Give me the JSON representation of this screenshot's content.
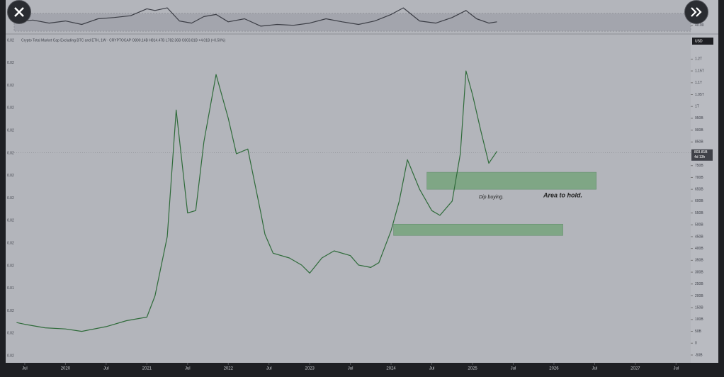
{
  "chart_data": [
    {
      "type": "line",
      "color": "#3b3d45",
      "x": [
        2019.4,
        2019.6,
        2019.8,
        2020.0,
        2020.2,
        2020.4,
        2020.6,
        2020.8,
        2021.0,
        2021.1,
        2021.25,
        2021.4,
        2021.55,
        2021.7,
        2021.85,
        2022.0,
        2022.2,
        2022.4,
        2022.6,
        2022.8,
        2023.0,
        2023.2,
        2023.4,
        2023.6,
        2023.8,
        2024.0,
        2024.15,
        2024.35,
        2024.55,
        2024.75,
        2024.92,
        2025.05,
        2025.2,
        2025.3
      ],
      "values": [
        48,
        52,
        45,
        50,
        42,
        55,
        58,
        62,
        78,
        74,
        80,
        50,
        45,
        60,
        65,
        48,
        55,
        38,
        42,
        40,
        45,
        55,
        48,
        42,
        50,
        65,
        80,
        50,
        45,
        58,
        74,
        55,
        45,
        48
      ],
      "xlim": [
        2019.37,
        2027.68
      ],
      "ylim": [
        20,
        90
      ],
      "yticks": [
        {
          "value": 40,
          "label": "40.00"
        }
      ]
    },
    {
      "type": "line",
      "color": "#2f6b3a",
      "title": "Crypto Total Market Cap Excluding BTC and ETH, 1W · CRYPTOCAP  O800.14B  H814.47B  L782.36B  C803.81B  +4.01B (+0.50%)",
      "currency": "USD",
      "last_price": {
        "value": 803.81,
        "label": "803.81B"
      },
      "countdown": "4d 13h",
      "x": [
        2019.4,
        2019.5,
        2019.75,
        2020.0,
        2020.2,
        2020.5,
        2020.75,
        2021.0,
        2021.1,
        2021.25,
        2021.36,
        2021.5,
        2021.6,
        2021.7,
        2021.85,
        2022.0,
        2022.1,
        2022.24,
        2022.4,
        2022.45,
        2022.55,
        2022.75,
        2022.9,
        2023.0,
        2023.15,
        2023.3,
        2023.5,
        2023.6,
        2023.75,
        2023.85,
        2024.0,
        2024.1,
        2024.2,
        2024.35,
        2024.5,
        2024.6,
        2024.75,
        2024.85,
        2024.92,
        2025.0,
        2025.1,
        2025.2,
        2025.3
      ],
      "values": [
        87,
        80,
        65,
        60,
        50,
        70,
        95,
        110,
        200,
        450,
        985,
        550,
        560,
        850,
        1135,
        950,
        800,
        820,
        550,
        460,
        380,
        360,
        330,
        296,
        360,
        390,
        370,
        330,
        320,
        340,
        476,
        600,
        775,
        650,
        560,
        540,
        600,
        800,
        1150,
        1050,
        900,
        760,
        811
      ],
      "xlim": [
        2019.37,
        2027.68
      ],
      "ylim": [
        -80,
        1300
      ],
      "xticks": [
        {
          "value": 2019.5,
          "label": "Jul"
        },
        2020,
        {
          "value": 2020.5,
          "label": "Jul"
        },
        2021,
        {
          "value": 2021.5,
          "label": "Jul"
        },
        2022,
        {
          "value": 2022.5,
          "label": "Jul"
        },
        2023,
        {
          "value": 2023.5,
          "label": "Jul"
        },
        2024,
        {
          "value": 2024.5,
          "label": "Jul"
        },
        2025,
        {
          "value": 2025.5,
          "label": "Jul"
        },
        2026,
        {
          "value": 2026.5,
          "label": "Jul"
        },
        2027,
        {
          "value": 2027.5,
          "label": "Jul"
        }
      ],
      "yticks": [
        {
          "value": 1200,
          "label": "1.2T"
        },
        {
          "value": 1150,
          "label": "1.15T"
        },
        {
          "value": 1100,
          "label": "1.1T"
        },
        {
          "value": 1050,
          "label": "1.05T"
        },
        {
          "value": 1000,
          "label": "1T"
        },
        {
          "value": 950,
          "label": "950B"
        },
        {
          "value": 900,
          "label": "900B"
        },
        {
          "value": 850,
          "label": "850B"
        },
        {
          "value": 750,
          "label": "750B"
        },
        {
          "value": 700,
          "label": "700B"
        },
        {
          "value": 650,
          "label": "650B"
        },
        {
          "value": 600,
          "label": "600B"
        },
        {
          "value": 550,
          "label": "550B"
        },
        {
          "value": 500,
          "label": "500B"
        },
        {
          "value": 450,
          "label": "450B"
        },
        {
          "value": 400,
          "label": "400B"
        },
        {
          "value": 350,
          "label": "350B"
        },
        {
          "value": 300,
          "label": "300B"
        },
        {
          "value": 250,
          "label": "250B"
        },
        {
          "value": 200,
          "label": "200B"
        },
        {
          "value": 150,
          "label": "150B"
        },
        {
          "value": 100,
          "label": "100B"
        },
        {
          "value": 50,
          "label": "50B"
        },
        0,
        {
          "value": -50,
          "label": "-50B"
        }
      ],
      "left_labels": [
        "0.02",
        "0.02",
        "0.02",
        "0.02",
        "0.02",
        "0.02",
        "0.02",
        "0.02",
        "0.02",
        "0.02",
        "0.02",
        "0.01",
        "0.02",
        "0.02",
        "0.02"
      ],
      "zones": [
        {
          "x": [
            2024.44,
            2026.52
          ],
          "y": [
            650,
            722
          ]
        },
        {
          "x": [
            2024.03,
            2026.11
          ],
          "y": [
            455,
            503
          ]
        }
      ],
      "zone_color": "#7fa685",
      "annotations": [
        "Dip buying.",
        "Area to hold."
      ]
    }
  ]
}
